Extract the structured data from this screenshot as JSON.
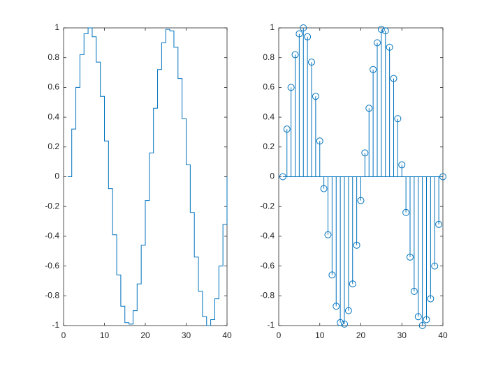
{
  "chart_data": [
    {
      "type": "stairs",
      "color": "#0072bd",
      "x": [
        1,
        2,
        3,
        4,
        5,
        6,
        7,
        8,
        9,
        10,
        11,
        12,
        13,
        14,
        15,
        16,
        17,
        18,
        19,
        20,
        21,
        22,
        23,
        24,
        25,
        26,
        27,
        28,
        29,
        30,
        31,
        32,
        33,
        34,
        35,
        36,
        37,
        38,
        39,
        40
      ],
      "values": [
        0,
        0.32,
        0.6,
        0.82,
        0.96,
        1,
        0.94,
        0.77,
        0.54,
        0.24,
        -0.08,
        -0.39,
        -0.66,
        -0.87,
        -0.98,
        -0.99,
        -0.9,
        -0.72,
        -0.46,
        -0.16,
        0.16,
        0.46,
        0.72,
        0.9,
        0.99,
        0.98,
        0.87,
        0.66,
        0.39,
        0.08,
        -0.24,
        -0.54,
        -0.77,
        -0.94,
        -1,
        -0.96,
        -0.82,
        -0.6,
        -0.32,
        0
      ],
      "xlim": [
        0,
        40
      ],
      "ylim": [
        -1,
        1
      ],
      "xticks": [
        0,
        10,
        20,
        30,
        40
      ],
      "yticks": [
        -1,
        -0.8,
        -0.6,
        -0.4,
        -0.2,
        0,
        0.2,
        0.4,
        0.6,
        0.8,
        1
      ]
    },
    {
      "type": "stem",
      "color": "#0072bd",
      "x": [
        1,
        2,
        3,
        4,
        5,
        6,
        7,
        8,
        9,
        10,
        11,
        12,
        13,
        14,
        15,
        16,
        17,
        18,
        19,
        20,
        21,
        22,
        23,
        24,
        25,
        26,
        27,
        28,
        29,
        30,
        31,
        32,
        33,
        34,
        35,
        36,
        37,
        38,
        39,
        40
      ],
      "values": [
        0,
        0.32,
        0.6,
        0.82,
        0.96,
        1,
        0.94,
        0.77,
        0.54,
        0.24,
        -0.08,
        -0.39,
        -0.66,
        -0.87,
        -0.98,
        -0.99,
        -0.9,
        -0.72,
        -0.46,
        -0.16,
        0.16,
        0.46,
        0.72,
        0.9,
        0.99,
        0.98,
        0.87,
        0.66,
        0.39,
        0.08,
        -0.24,
        -0.54,
        -0.77,
        -0.94,
        -1,
        -0.96,
        -0.82,
        -0.6,
        -0.32,
        0
      ],
      "xlim": [
        0,
        40
      ],
      "ylim": [
        -1,
        1
      ],
      "xticks": [
        0,
        10,
        20,
        30,
        40
      ],
      "yticks": [
        -1,
        -0.8,
        -0.6,
        -0.4,
        -0.2,
        0,
        0.2,
        0.4,
        0.6,
        0.8,
        1
      ]
    }
  ]
}
